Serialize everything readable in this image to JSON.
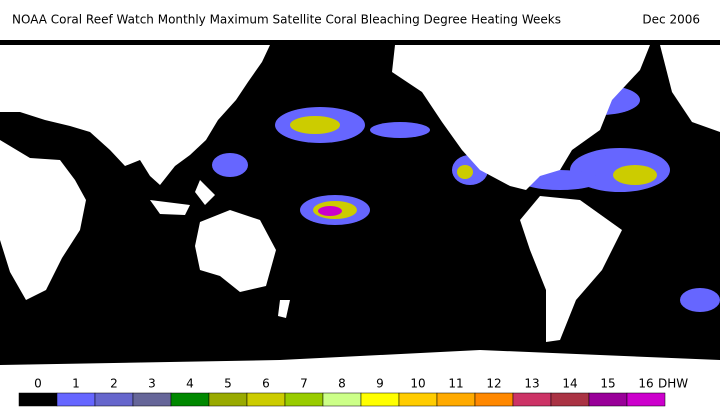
{
  "header": {
    "title": "NOAA Coral Reef Watch Monthly Maximum Satellite Coral Bleaching Degree Heating Weeks",
    "date": "Dec 2006"
  },
  "legend": {
    "labels": [
      "0",
      "1",
      "2",
      "3",
      "4",
      "5",
      "6",
      "7",
      "8",
      "9",
      "10",
      "11",
      "12",
      "13",
      "14",
      "15",
      "16"
    ],
    "unit": "DHW",
    "colors": [
      "#000000",
      "#6666ff",
      "#6666cc",
      "#666699",
      "#008800",
      "#99aa00",
      "#cccc00",
      "#99cc00",
      "#ccff88",
      "#ffff00",
      "#ffcc00",
      "#ffaa00",
      "#ff8800",
      "#cc3366",
      "#aa3344",
      "#990099",
      "#cc00cc"
    ]
  }
}
